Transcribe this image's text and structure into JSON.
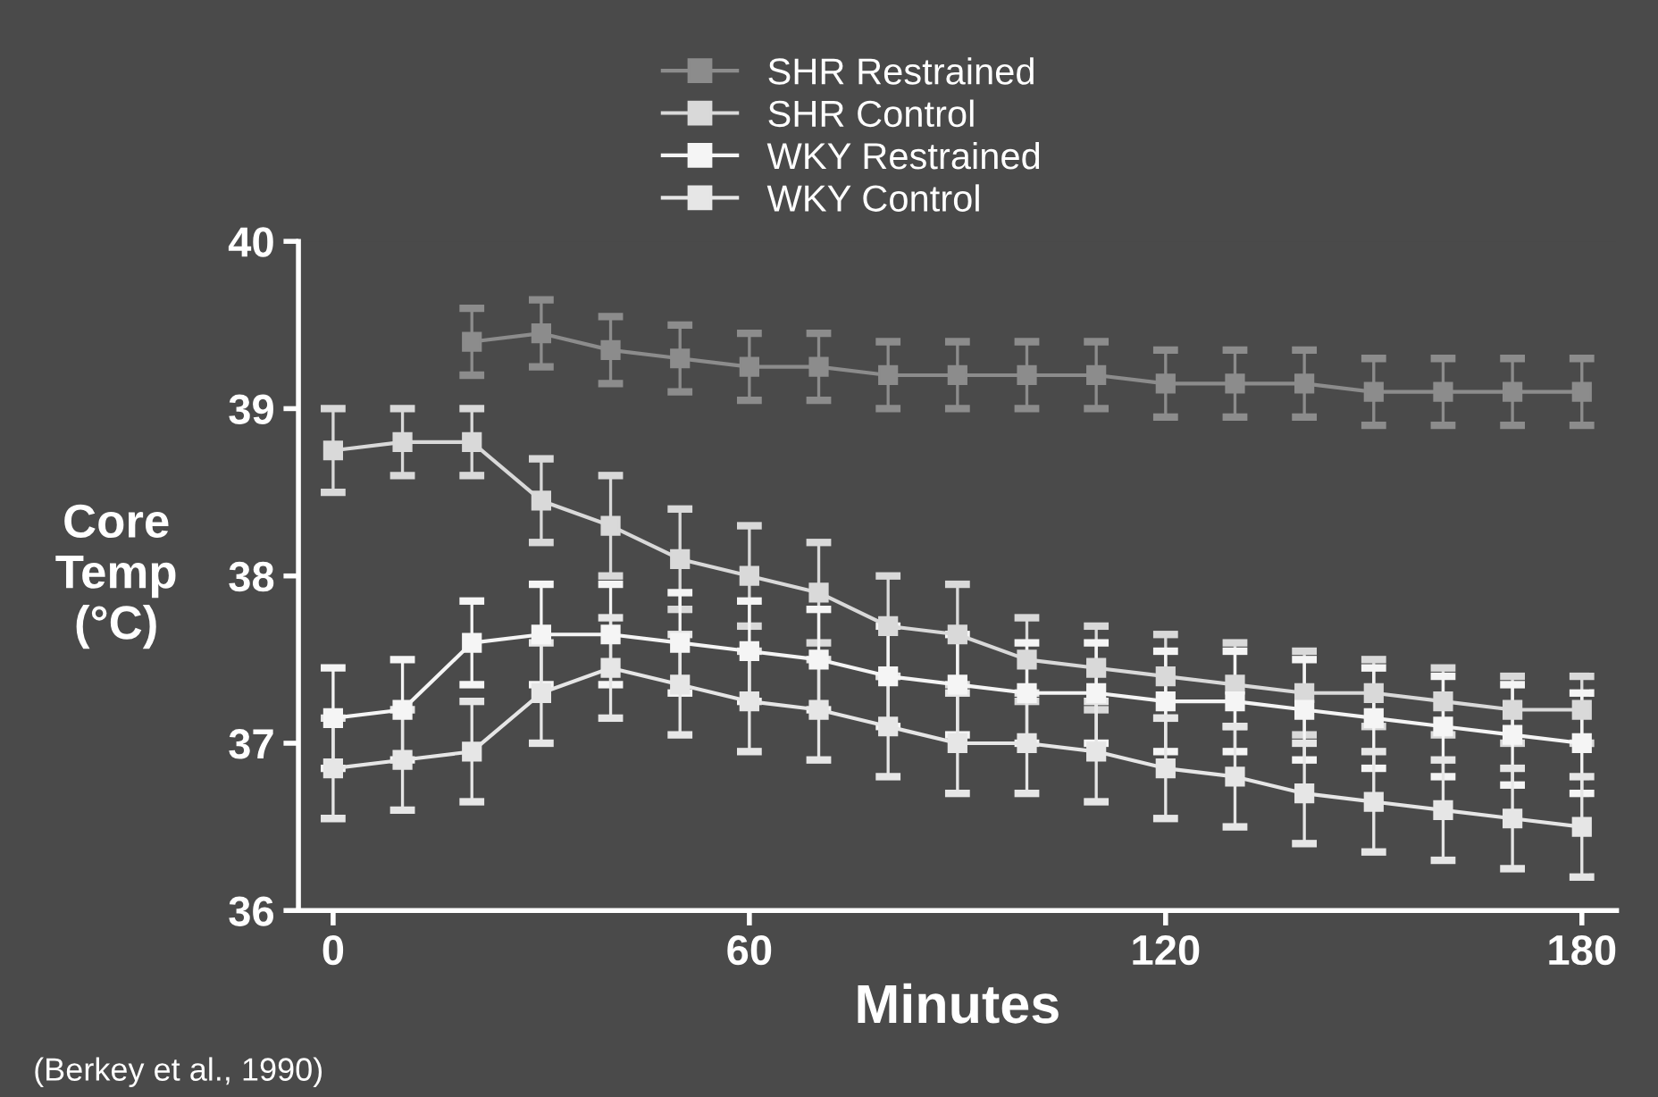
{
  "chart_data": {
    "type": "line",
    "xlabel": "Minutes",
    "ylabel": "Core\nTemp\n(°C)",
    "x": [
      0,
      10,
      20,
      30,
      40,
      50,
      60,
      70,
      80,
      90,
      100,
      110,
      120,
      130,
      140,
      150,
      160,
      170,
      180
    ],
    "xlim": [
      -5,
      185
    ],
    "xticks": [
      0,
      60,
      120,
      180
    ],
    "ylim": [
      36,
      40
    ],
    "yticks": [
      36,
      37,
      38,
      39,
      40
    ],
    "grid": false,
    "legend": "top",
    "marker": "square",
    "line_style": "solid",
    "series": [
      {
        "name": "SHR Restrained",
        "color": "#8c8c8c",
        "values": [
          null,
          null,
          39.4,
          39.45,
          39.35,
          39.3,
          39.25,
          39.25,
          39.2,
          39.2,
          39.2,
          39.2,
          39.15,
          39.15,
          39.15,
          39.1,
          39.1,
          39.1,
          39.1
        ],
        "errors": [
          null,
          null,
          0.2,
          0.2,
          0.2,
          0.2,
          0.2,
          0.2,
          0.2,
          0.2,
          0.2,
          0.2,
          0.2,
          0.2,
          0.2,
          0.2,
          0.2,
          0.2,
          0.2
        ]
      },
      {
        "name": "SHR Control",
        "color": "#d9d9d9",
        "values": [
          38.75,
          38.8,
          38.8,
          38.45,
          38.3,
          38.1,
          38.0,
          37.9,
          37.7,
          37.65,
          37.5,
          37.45,
          37.4,
          37.35,
          37.3,
          37.3,
          37.25,
          37.2,
          37.2
        ],
        "errors": [
          0.25,
          0.2,
          0.2,
          0.25,
          0.3,
          0.3,
          0.3,
          0.3,
          0.3,
          0.3,
          0.25,
          0.25,
          0.25,
          0.25,
          0.25,
          0.2,
          0.2,
          0.2,
          0.2
        ]
      },
      {
        "name": "WKY Restrained",
        "color": "#f5f5f5",
        "values": [
          37.15,
          37.2,
          37.6,
          37.65,
          37.65,
          37.6,
          37.55,
          37.5,
          37.4,
          37.35,
          37.3,
          37.3,
          37.25,
          37.25,
          37.2,
          37.15,
          37.1,
          37.05,
          37.0
        ],
        "errors": [
          0.3,
          0.3,
          0.25,
          0.3,
          0.3,
          0.3,
          0.3,
          0.3,
          0.3,
          0.3,
          0.3,
          0.3,
          0.3,
          0.3,
          0.3,
          0.3,
          0.3,
          0.3,
          0.3
        ]
      },
      {
        "name": "WKY Control",
        "color": "#e6e6e6",
        "values": [
          36.85,
          36.9,
          36.95,
          37.3,
          37.45,
          37.35,
          37.25,
          37.2,
          37.1,
          37.0,
          37.0,
          36.95,
          36.85,
          36.8,
          36.7,
          36.65,
          36.6,
          36.55,
          36.5
        ],
        "errors": [
          0.3,
          0.3,
          0.3,
          0.3,
          0.3,
          0.3,
          0.3,
          0.3,
          0.3,
          0.3,
          0.3,
          0.3,
          0.3,
          0.3,
          0.3,
          0.3,
          0.3,
          0.3,
          0.3
        ]
      }
    ],
    "annotations": [
      "(Berkey et al., 1990)"
    ]
  }
}
